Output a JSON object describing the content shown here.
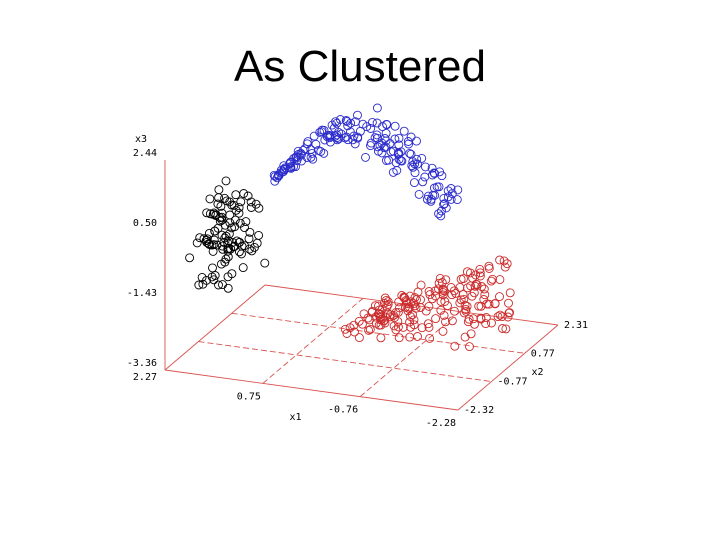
{
  "slide": {
    "title": "As Clustered"
  },
  "chart_data": {
    "type": "scatter",
    "dimensions": 3,
    "title": "As Clustered",
    "axes": {
      "x1": {
        "label": "x1",
        "ticks": [
          "2.27",
          "0.75",
          "-0.76",
          "-2.28"
        ],
        "range": [
          -2.28,
          2.27
        ]
      },
      "x2": {
        "label": "x2",
        "ticks": [
          "-2.32",
          "-0.77",
          "0.77",
          "2.31"
        ],
        "range": [
          -2.32,
          2.31
        ]
      },
      "x3": {
        "label": "x3",
        "ticks": [
          "-3.36",
          "-1.43",
          "0.50",
          "2.44"
        ],
        "range": [
          -3.36,
          2.44
        ]
      }
    },
    "grid": true,
    "marker": "open-circle",
    "series": [
      {
        "color": "#000000",
        "n": 110,
        "x1": [
          1.6,
          2.3
        ],
        "x2": [
          -1.2,
          0.6
        ],
        "x3": [
          -1.9,
          0.6
        ]
      },
      {
        "color": "#2b2bcc",
        "n": 180,
        "x1": [
          -1.4,
          1.4
        ],
        "x2": [
          -0.5,
          0.6
        ],
        "x3": [
          -0.3,
          3.0
        ]
      },
      {
        "color": "#cc2b2b",
        "n": 190,
        "x1": [
          -2.1,
          0.1
        ],
        "x2": [
          -0.8,
          1.3
        ],
        "x3": [
          -3.2,
          -0.5
        ]
      }
    ]
  }
}
